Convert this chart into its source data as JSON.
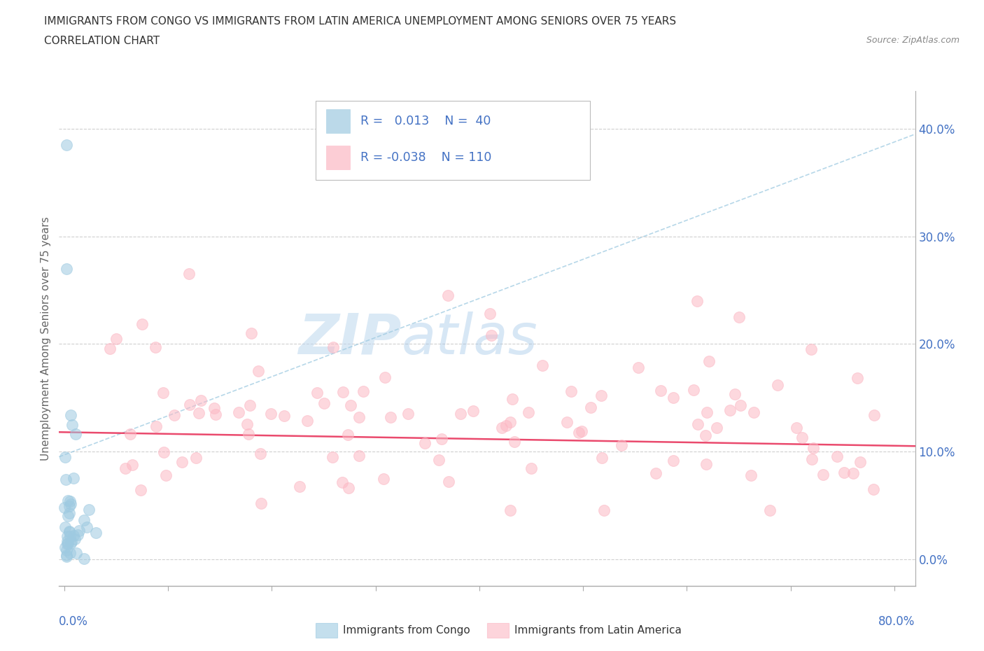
{
  "title_line1": "IMMIGRANTS FROM CONGO VS IMMIGRANTS FROM LATIN AMERICA UNEMPLOYMENT AMONG SENIORS OVER 75 YEARS",
  "title_line2": "CORRELATION CHART",
  "source": "Source: ZipAtlas.com",
  "ylabel": "Unemployment Among Seniors over 75 years",
  "ytick_vals": [
    0.0,
    0.1,
    0.2,
    0.3,
    0.4
  ],
  "ytick_labels": [
    "0.0%",
    "10.0%",
    "20.0%",
    "30.0%",
    "40.0%"
  ],
  "xtick_vals": [
    0.0,
    0.1,
    0.2,
    0.3,
    0.4,
    0.5,
    0.6,
    0.7,
    0.8
  ],
  "xlim": [
    -0.005,
    0.82
  ],
  "ylim": [
    -0.025,
    0.435
  ],
  "congo_color": "#9ecae1",
  "latam_color": "#fcb8c4",
  "congo_line_color": "#9ecae1",
  "latam_line_color": "#e8365d",
  "legend_r1": "R =   0.013",
  "legend_n1": "N =  40",
  "legend_r2": "R = -0.038",
  "legend_n2": "N = 110",
  "watermark_zip": "ZIP",
  "watermark_atlas": "atlas",
  "background_color": "#ffffff",
  "grid_color": "#d0d0d0",
  "tick_color": "#4472c4",
  "legend_text_color": "#4472c4",
  "title_color": "#333333",
  "ylabel_color": "#666666"
}
